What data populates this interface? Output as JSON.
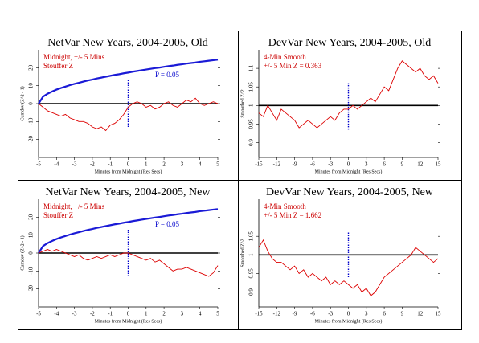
{
  "chart_data": [
    {
      "type": "line",
      "title": "NetVar New Years, 2004-2005, Old",
      "xlabel": "Minutes from Midnight (Res Secs)",
      "ylabel": "Cumdev (Z^2 - 1)",
      "annotations": [
        {
          "text": "Midnight, +/- 5 Mins",
          "color": "#cc0000"
        },
        {
          "text": "Stouffer Z",
          "color": "#cc0000"
        },
        {
          "text": "P = 0.05",
          "color": "#0000cc"
        }
      ],
      "xlim": [
        -5,
        5
      ],
      "xticks": [
        -5,
        -4,
        -3,
        -2,
        -1,
        0,
        1,
        2,
        3,
        4,
        5
      ],
      "ylim": [
        -30,
        30
      ],
      "yticks": [
        20,
        10,
        0,
        -10,
        -20
      ],
      "hlines": [
        {
          "y": 0,
          "color": "#000000"
        }
      ],
      "vlines": [
        {
          "x": 0,
          "ymin": -13,
          "ymax": 13,
          "color": "#0000cc"
        }
      ],
      "x": [
        -5,
        -4.75,
        -4.5,
        -4.25,
        -4,
        -3.75,
        -3.5,
        -3.25,
        -3,
        -2.75,
        -2.5,
        -2.25,
        -2,
        -1.75,
        -1.5,
        -1.25,
        -1,
        -0.75,
        -0.5,
        -0.25,
        0,
        0.25,
        0.5,
        0.75,
        1,
        1.25,
        1.5,
        1.75,
        2,
        2.25,
        2.5,
        2.75,
        3,
        3.25,
        3.5,
        3.75,
        4,
        4.25,
        4.5,
        4.75,
        5
      ],
      "series": [
        {
          "color": "#1a1ad6",
          "values": [
            0,
            3.9,
            5.5,
            6.7,
            7.8,
            8.7,
            9.5,
            10.3,
            11,
            11.6,
            12.3,
            12.9,
            13.4,
            14,
            14.5,
            15,
            15.5,
            16,
            16.4,
            16.9,
            17.3,
            17.8,
            18.2,
            18.6,
            19,
            19.4,
            19.8,
            20.1,
            20.5,
            20.9,
            21.2,
            21.6,
            21.9,
            22.3,
            22.6,
            22.9,
            23.3,
            23.6,
            23.9,
            24.2,
            24.5
          ]
        },
        {
          "color": "#dd0000",
          "values": [
            0,
            -2,
            -4,
            -5,
            -6,
            -7,
            -6,
            -8,
            -9,
            -10,
            -10,
            -11,
            -13,
            -14,
            -13,
            -15,
            -12,
            -11,
            -9,
            -6,
            -2,
            0,
            1,
            0,
            -2,
            -1,
            -3,
            -2,
            0,
            1,
            -1,
            -2,
            0,
            2,
            1,
            3,
            0,
            -1,
            0,
            1,
            0
          ]
        }
      ]
    },
    {
      "type": "line",
      "title": "DevVar New Years, 2004-2005, Old",
      "xlabel": "Minutes from Midnight (Res Secs)",
      "ylabel": "Smoothed Z^2",
      "annotations": [
        {
          "text": "4-Min Smooth",
          "color": "#cc0000"
        },
        {
          "text": "+/- 5 Min Z = 0.363",
          "color": "#cc0000"
        }
      ],
      "xlim": [
        -15,
        15
      ],
      "xticks": [
        -15,
        -12,
        -9,
        -6,
        -3,
        0,
        3,
        6,
        9,
        12,
        15
      ],
      "ylim": [
        0.86,
        1.15
      ],
      "yticks": [
        1.1,
        1.05,
        1,
        0.95,
        0.9
      ],
      "hlines": [
        {
          "y": 1,
          "color": "#000000"
        }
      ],
      "vlines": [
        {
          "x": 0,
          "ymin": 0.935,
          "ymax": 1.06,
          "color": "#0000cc"
        }
      ],
      "x": [
        -15,
        -14.25,
        -13.5,
        -12.75,
        -12,
        -11.25,
        -10.5,
        -9.75,
        -9,
        -8.25,
        -7.5,
        -6.75,
        -6,
        -5.25,
        -4.5,
        -3.75,
        -3,
        -2.25,
        -1.5,
        -0.75,
        0,
        0.75,
        1.5,
        2.25,
        3,
        3.75,
        4.5,
        5.25,
        6,
        6.75,
        7.5,
        8.25,
        9,
        9.75,
        10.5,
        11.25,
        12,
        12.75,
        13.5,
        14.25,
        15
      ],
      "series": [
        {
          "color": "#dd0000",
          "values": [
            0.98,
            0.97,
            1.0,
            0.98,
            0.96,
            0.99,
            0.98,
            0.97,
            0.96,
            0.94,
            0.95,
            0.96,
            0.95,
            0.94,
            0.95,
            0.96,
            0.97,
            0.96,
            0.98,
            0.99,
            0.99,
            1.0,
            0.99,
            1.0,
            1.01,
            1.02,
            1.01,
            1.03,
            1.05,
            1.04,
            1.07,
            1.1,
            1.12,
            1.11,
            1.1,
            1.09,
            1.1,
            1.08,
            1.07,
            1.08,
            1.06
          ]
        }
      ]
    },
    {
      "type": "line",
      "title": "NetVar New Years, 2004-2005, New",
      "xlabel": "Minutes from Midnight (Res Secs)",
      "ylabel": "Cumdev (Z^2 - 1)",
      "annotations": [
        {
          "text": "Midnight, +/- 5 Mins",
          "color": "#cc0000"
        },
        {
          "text": "Stouffer Z",
          "color": "#cc0000"
        },
        {
          "text": "P = 0.05",
          "color": "#0000cc"
        }
      ],
      "xlim": [
        -5,
        5
      ],
      "xticks": [
        -5,
        -4,
        -3,
        -2,
        -1,
        0,
        1,
        2,
        3,
        4,
        5
      ],
      "ylim": [
        -30,
        30
      ],
      "yticks": [
        20,
        10,
        0,
        -10,
        -20
      ],
      "hlines": [
        {
          "y": 0,
          "color": "#000000"
        }
      ],
      "vlines": [
        {
          "x": 0,
          "ymin": -13,
          "ymax": 13,
          "color": "#0000cc"
        }
      ],
      "x": [
        -5,
        -4.75,
        -4.5,
        -4.25,
        -4,
        -3.75,
        -3.5,
        -3.25,
        -3,
        -2.75,
        -2.5,
        -2.25,
        -2,
        -1.75,
        -1.5,
        -1.25,
        -1,
        -0.75,
        -0.5,
        -0.25,
        0,
        0.25,
        0.5,
        0.75,
        1,
        1.25,
        1.5,
        1.75,
        2,
        2.25,
        2.5,
        2.75,
        3,
        3.25,
        3.5,
        3.75,
        4,
        4.25,
        4.5,
        4.75,
        5
      ],
      "series": [
        {
          "color": "#1a1ad6",
          "values": [
            0,
            3.9,
            5.5,
            6.7,
            7.8,
            8.7,
            9.5,
            10.3,
            11,
            11.6,
            12.3,
            12.9,
            13.4,
            14,
            14.5,
            15,
            15.5,
            16,
            16.4,
            16.9,
            17.3,
            17.8,
            18.2,
            18.6,
            19,
            19.4,
            19.8,
            20.1,
            20.5,
            20.9,
            21.2,
            21.6,
            21.9,
            22.3,
            22.6,
            22.9,
            23.3,
            23.6,
            23.9,
            24.2,
            24.5
          ]
        },
        {
          "color": "#dd0000",
          "values": [
            0,
            1,
            2,
            1,
            2,
            1,
            0,
            -1,
            -2,
            -1,
            -3,
            -4,
            -3,
            -2,
            -3,
            -2,
            -1,
            -2,
            -1,
            0,
            0,
            -1,
            -2,
            -3,
            -4,
            -3,
            -5,
            -4,
            -6,
            -8,
            -10,
            -9,
            -9,
            -8,
            -9,
            -10,
            -11,
            -12,
            -13,
            -11,
            -7
          ]
        }
      ]
    },
    {
      "type": "line",
      "title": "DevVar New Years, 2004-2005, New",
      "xlabel": "Minutes from Midnight (Res Secs)",
      "ylabel": "Smoothed Z^2",
      "annotations": [
        {
          "text": "4-Min Smooth",
          "color": "#cc0000"
        },
        {
          "text": "+/- 5 Min Z = 1.662",
          "color": "#cc0000"
        }
      ],
      "xlim": [
        -15,
        15
      ],
      "xticks": [
        -15,
        -12,
        -9,
        -6,
        -3,
        0,
        3,
        6,
        9,
        12,
        15
      ],
      "ylim": [
        0.86,
        1.15
      ],
      "yticks": [
        1.05,
        1,
        0.95,
        0.9
      ],
      "hlines": [
        {
          "y": 1,
          "color": "#000000"
        }
      ],
      "vlines": [
        {
          "x": 0,
          "ymin": 0.94,
          "ymax": 1.063,
          "color": "#0000cc"
        }
      ],
      "x": [
        -15,
        -14.25,
        -13.5,
        -12.75,
        -12,
        -11.25,
        -10.5,
        -9.75,
        -9,
        -8.25,
        -7.5,
        -6.75,
        -6,
        -5.25,
        -4.5,
        -3.75,
        -3,
        -2.25,
        -1.5,
        -0.75,
        0,
        0.75,
        1.5,
        2.25,
        3,
        3.75,
        4.5,
        5.25,
        6,
        6.75,
        7.5,
        8.25,
        9,
        9.75,
        10.5,
        11.25,
        12,
        12.75,
        13.5,
        14.25,
        15
      ],
      "series": [
        {
          "color": "#dd0000",
          "values": [
            1.02,
            1.04,
            1.01,
            0.99,
            0.98,
            0.98,
            0.97,
            0.96,
            0.97,
            0.95,
            0.96,
            0.94,
            0.95,
            0.94,
            0.93,
            0.94,
            0.92,
            0.93,
            0.92,
            0.93,
            0.92,
            0.91,
            0.92,
            0.9,
            0.91,
            0.89,
            0.9,
            0.92,
            0.94,
            0.95,
            0.96,
            0.97,
            0.98,
            0.99,
            1.0,
            1.02,
            1.01,
            1.0,
            0.99,
            0.98,
            0.99
          ]
        }
      ]
    }
  ]
}
